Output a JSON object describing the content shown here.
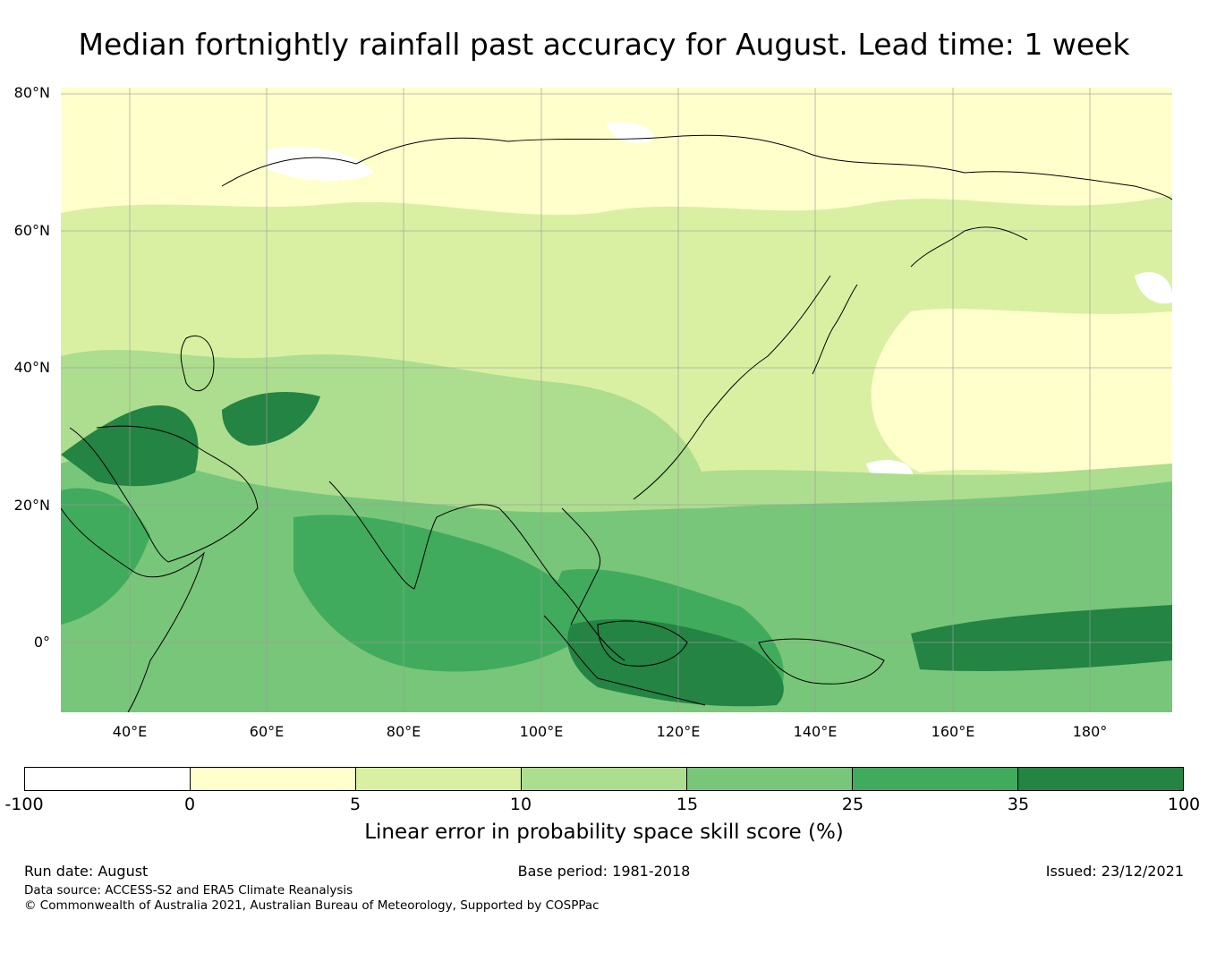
{
  "title": "Median fortnightly rainfall past accuracy for August. Lead time: 1 week",
  "map": {
    "region": "Asia and western Pacific",
    "projection": "equirectangular",
    "lon_range": [
      30,
      192
    ],
    "lat_range": [
      -10,
      81
    ],
    "gridlines": true,
    "coastlines": true,
    "lat_ticks": [
      "80°N",
      "60°N",
      "40°N",
      "20°N",
      "0°"
    ],
    "lon_ticks": [
      "40°E",
      "60°E",
      "80°E",
      "100°E",
      "120°E",
      "140°E",
      "160°E",
      "180°"
    ]
  },
  "colorbar": {
    "label": "Linear error in probability space skill score (%)",
    "boundaries": [
      "-100",
      "0",
      "5",
      "10",
      "15",
      "25",
      "35",
      "100"
    ],
    "colors": [
      "#ffffff",
      "#ffffcc",
      "#d9f0a3",
      "#addd8e",
      "#78c679",
      "#41ab5d",
      "#238443"
    ]
  },
  "footer": {
    "run_date": "Run date: August",
    "base_period": "Base period: 1981-2018",
    "issued": "Issued: 23/12/2021",
    "data_source": "Data source: ACCESS-S2 and ERA5 Climate Reanalysis",
    "copyright": "© Commonwealth of Australia 2021, Australian Bureau of Meteorology, Supported by COSPPac"
  }
}
